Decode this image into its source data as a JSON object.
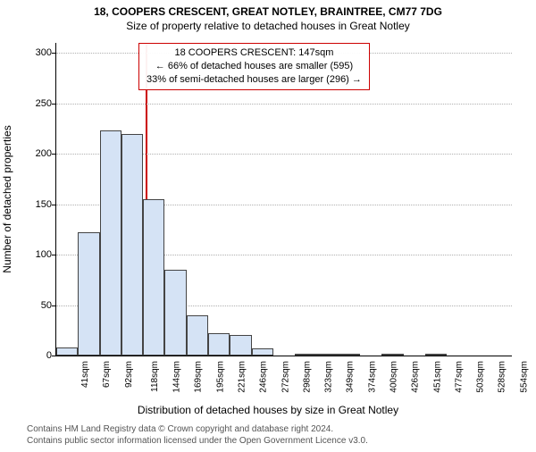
{
  "title_line1": "18, COOPERS CRESCENT, GREAT NOTLEY, BRAINTREE, CM77 7DG",
  "title_line2": "Size of property relative to detached houses in Great Notley",
  "annotation": {
    "line1": "18 COOPERS CRESCENT: 147sqm",
    "line2": "← 66% of detached houses are smaller (595)",
    "line3": "33% of semi-detached houses are larger (296) →",
    "border_color": "#cc0000"
  },
  "chart": {
    "type": "histogram",
    "background_color": "#ffffff",
    "grid_color": "#b0b0b0",
    "bar_fill": "#d5e3f5",
    "bar_border": "#444444",
    "refline_color": "#cc0000",
    "refline_x": 147,
    "x_start": 41,
    "x_bin_width": 25.65,
    "x_tick_labels": [
      "41sqm",
      "67sqm",
      "92sqm",
      "118sqm",
      "144sqm",
      "169sqm",
      "195sqm",
      "221sqm",
      "246sqm",
      "272sqm",
      "298sqm",
      "323sqm",
      "349sqm",
      "374sqm",
      "400sqm",
      "426sqm",
      "451sqm",
      "477sqm",
      "503sqm",
      "528sqm",
      "554sqm"
    ],
    "y_ticks": [
      0,
      50,
      100,
      150,
      200,
      250,
      300
    ],
    "ylim": [
      0,
      310
    ],
    "values": [
      8,
      122,
      223,
      220,
      155,
      85,
      40,
      22,
      20,
      7,
      0,
      2,
      2,
      2,
      0,
      2,
      0,
      2,
      0,
      0,
      0
    ],
    "ylabel": "Number of detached properties",
    "xlabel": "Distribution of detached houses by size in Great Notley",
    "label_fontsize": 12,
    "tick_fontsize": 11
  },
  "footer": {
    "line1": "Contains HM Land Registry data © Crown copyright and database right 2024.",
    "line2": "Contains public sector information licensed under the Open Government Licence v3.0."
  }
}
